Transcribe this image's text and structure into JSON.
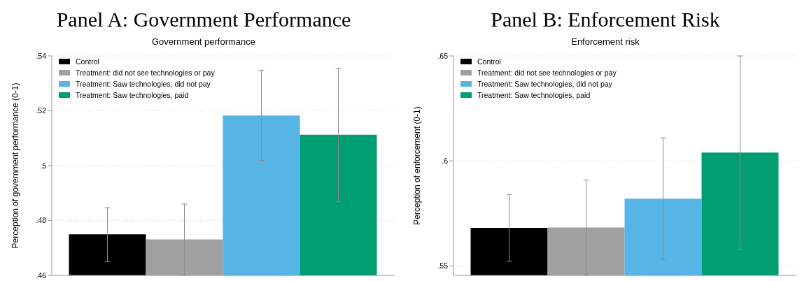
{
  "chart_data": [
    {
      "type": "bar",
      "title": "Panel A: Government Performance",
      "subtitle": "Government performance",
      "ylabel": "Perception of government performance (0-1)",
      "categories": [
        null
      ],
      "series": [
        {
          "name": "Control",
          "color": "#000000",
          "values": [
            0.475
          ],
          "errors": [
            [
              0.465,
              0.4847
            ]
          ]
        },
        {
          "name": "Treatment: did not see technologies or pay",
          "color": "#a0a0a0",
          "values": [
            0.4731
          ],
          "errors": [
            [
              0.46,
              0.486
            ]
          ]
        },
        {
          "name": "Treatment: Saw technologies, did not pay",
          "color": "#56b4e6",
          "values": [
            0.5183
          ],
          "errors": [
            [
              0.5019,
              0.5347
            ]
          ]
        },
        {
          "name": "Treatment: Saw technologies, paid",
          "color": "#009e73",
          "values": [
            0.5113
          ],
          "errors": [
            [
              0.4868,
              0.5355
            ]
          ]
        }
      ],
      "ylim": [
        0.46,
        0.54
      ],
      "yticks": [
        {
          "value": 0.46,
          "label": ".46"
        },
        {
          "value": 0.48,
          "label": ".48"
        },
        {
          "value": 0.5,
          "label": ".5"
        },
        {
          "value": 0.52,
          "label": ".52"
        },
        {
          "value": 0.54,
          "label": ".54"
        }
      ],
      "grid": "y",
      "legend": "top left",
      "tick_labels": "y"
    },
    {
      "type": "bar",
      "title": "Panel B: Enforcement Risk",
      "subtitle": "Enforcement risk",
      "ylabel": "Perception of enforcement (0-1)",
      "categories": [
        null
      ],
      "series": [
        {
          "name": "Control",
          "color": "#000000",
          "values": [
            0.5681
          ],
          "errors": [
            [
              0.5522,
              0.584
            ]
          ]
        },
        {
          "name": "Treatment: did not see technologies or pay",
          "color": "#a0a0a0",
          "values": [
            0.5683
          ],
          "errors": [
            [
              0.5455,
              0.5909
            ]
          ]
        },
        {
          "name": "Treatment: Saw technologies, did not pay",
          "color": "#56b4e6",
          "values": [
            0.582
          ],
          "errors": [
            [
              0.553,
              0.611
            ]
          ]
        },
        {
          "name": "Treatment: Saw technologies, paid",
          "color": "#009e73",
          "values": [
            0.604
          ],
          "errors": [
            [
              0.5578,
              0.65
            ]
          ]
        }
      ],
      "ylim": [
        0.5455,
        0.65
      ],
      "yticks": [
        {
          "value": 0.55,
          "label": ".55"
        },
        {
          "value": 0.6,
          "label": ".6"
        },
        {
          "value": 0.65,
          "label": ".65"
        }
      ],
      "grid": "y",
      "legend": "top left",
      "tick_labels": "y"
    }
  ]
}
